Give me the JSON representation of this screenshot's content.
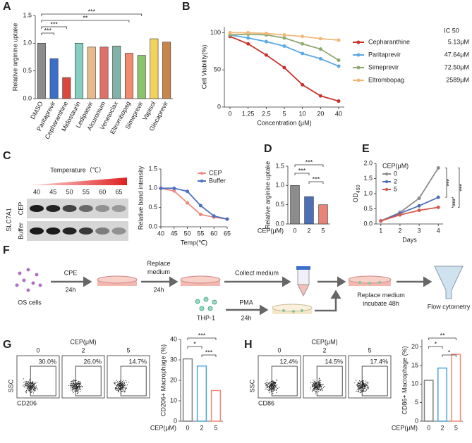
{
  "chart_data": [
    {
      "label": "A",
      "type": "bar",
      "ylabel": "Relative arginine uptake",
      "categories": [
        "DMSO",
        "Paritaprevir",
        "Cepharanthine",
        "Midostaurin",
        "Ledipasvir",
        "Alcuronium",
        "Venetoclax",
        "Eltrombopag",
        "Simeprevir",
        "Vapisol",
        "Glecaprevir"
      ],
      "values": [
        1.0,
        0.72,
        0.38,
        1.0,
        0.93,
        0.93,
        0.95,
        0.82,
        0.78,
        1.08,
        1.02
      ],
      "colors": [
        "#8c8c8c",
        "#3d6fc9",
        "#d9483b",
        "#86cfc0",
        "#e8b98a",
        "#e0706a",
        "#7fb3a8",
        "#f28a6f",
        "#8bc46f",
        "#f2d25c",
        "#c9864a"
      ],
      "ylim": [
        0,
        1.5
      ],
      "yticks": [
        {
          "value": 0,
          "label": "0.0"
        },
        {
          "value": 0.5,
          "label": "0.5"
        },
        {
          "value": 1,
          "label": "1.0"
        },
        {
          "value": 1.5,
          "label": "1.5"
        }
      ],
      "significance": [
        {
          "pair": [
            "DMSO",
            "Simeprevir"
          ],
          "label": "***"
        },
        {
          "pair": [
            "DMSO",
            "Eltrombopag"
          ],
          "label": "**"
        },
        {
          "pair": [
            "DMSO",
            "Cepharanthine"
          ],
          "label": "***"
        },
        {
          "pair": [
            "DMSO",
            "Paritaprevir"
          ],
          "label": "***"
        }
      ]
    },
    {
      "label": "B",
      "type": "line",
      "xlabel": "Concentration (μM)",
      "ylabel": "Cell Viability(%)",
      "categories": [
        "0",
        "1.25",
        "2.5",
        "5",
        "10",
        "20",
        "40"
      ],
      "ylim": [
        0,
        108
      ],
      "yticks": [
        0,
        50,
        100
      ],
      "legend_title": "IC 50",
      "series": [
        {
          "name": "Cepharanthine",
          "color": "#c9302c",
          "ic50": "5.13μM",
          "values": [
            95,
            85,
            70,
            53,
            30,
            15,
            8
          ]
        },
        {
          "name": "Paritaprevir",
          "color": "#5aa9e6",
          "ic50": "47.64μM",
          "values": [
            97,
            93,
            88,
            82,
            72,
            65,
            55
          ]
        },
        {
          "name": "Simeprevir",
          "color": "#8fa870",
          "ic50": "72.50μM",
          "values": [
            97,
            98,
            97,
            93,
            85,
            78,
            63
          ]
        },
        {
          "name": "Eltrombopag",
          "color": "#f2b777",
          "ic50": "2589μM",
          "values": [
            100,
            100,
            99,
            97,
            95,
            92,
            90
          ]
        }
      ]
    },
    {
      "type": "line",
      "xlabel": "Temp(℃)",
      "ylabel": "Relative band intensity",
      "x": [
        40,
        45,
        50,
        55,
        60,
        65
      ],
      "xlim": [
        40,
        65
      ],
      "xticks": [
        40,
        45,
        50,
        55,
        60,
        65
      ],
      "ylim": [
        0,
        1.5
      ],
      "yticks": [
        {
          "value": 0,
          "label": "0.0"
        },
        {
          "value": 0.5,
          "label": "0.5"
        },
        {
          "value": 1,
          "label": "1.0"
        },
        {
          "value": 1.5,
          "label": "1.5"
        }
      ],
      "series": [
        {
          "name": "CEP",
          "color": "#f08a80",
          "values": [
            1.0,
            0.93,
            0.62,
            0.32,
            0.25,
            0.2
          ]
        },
        {
          "name": "Buffer",
          "color": "#4a6fc4",
          "values": [
            1.0,
            1.0,
            0.92,
            0.55,
            0.28,
            0.2
          ]
        }
      ]
    },
    {
      "label": "D",
      "type": "bar",
      "ylabel": "Relative arginine uptake",
      "xlabel": "CEP(μM)",
      "categories": [
        "0",
        "2",
        "5"
      ],
      "values": [
        1.0,
        0.71,
        0.5
      ],
      "colors": [
        "#8c8c8c",
        "#4d6fb8",
        "#e8837a"
      ],
      "ylim": [
        0,
        1.5
      ],
      "yticks": [
        {
          "value": 0,
          "label": "0.0"
        },
        {
          "value": 0.5,
          "label": "0.5"
        },
        {
          "value": 1,
          "label": "1.0"
        },
        {
          "value": 1.5,
          "label": "1.5"
        }
      ],
      "significance": [
        {
          "pair": [
            "0",
            "5"
          ],
          "label": "***"
        },
        {
          "pair": [
            "0",
            "2"
          ],
          "label": "***"
        },
        {
          "pair": [
            "2",
            "5"
          ],
          "label": "***"
        }
      ]
    },
    {
      "label": "E",
      "type": "line",
      "xlabel": "Days",
      "ylabel": "OD",
      "ylabel_subscript": "450",
      "x": [
        1,
        2,
        3,
        4
      ],
      "xlim": [
        0.75,
        4.25
      ],
      "xticks": [
        1,
        2,
        3,
        4
      ],
      "ylim": [
        0,
        2
      ],
      "yticks": [
        {
          "value": 0,
          "label": "0.0"
        },
        {
          "value": 0.5,
          "label": "0.5"
        },
        {
          "value": 1,
          "label": "1.0"
        },
        {
          "value": 1.5,
          "label": "1.5"
        },
        {
          "value": 2,
          "label": "2.0"
        }
      ],
      "legend_title": "CEP(μM)",
      "series": [
        {
          "name": "0",
          "color": "#8c8c8c",
          "values": [
            0.1,
            0.38,
            0.85,
            1.85
          ]
        },
        {
          "name": "2",
          "color": "#4d6fb8",
          "values": [
            0.1,
            0.35,
            0.6,
            0.88
          ]
        },
        {
          "name": "5",
          "color": "#d9584b",
          "values": [
            0.1,
            0.3,
            0.45,
            0.55
          ]
        }
      ],
      "significance": [
        {
          "pair": [
            "0",
            "2"
          ],
          "label": "***"
        },
        {
          "pair": [
            "2",
            "5"
          ],
          "label": "***"
        },
        {
          "pair": [
            "0",
            "5"
          ],
          "label": "***"
        }
      ]
    },
    {
      "type": "bar",
      "hollow": true,
      "ylabel": "CD206+ Macrophage (%)",
      "xlabel": "CEP(μM)",
      "categories": [
        "0",
        "2",
        "5"
      ],
      "values": [
        30.5,
        27,
        15
      ],
      "colors": [
        "#7f7f7f",
        "#4aa3d8",
        "#f08a70"
      ],
      "ylim": [
        0,
        40
      ],
      "yticks": [
        0,
        10,
        20,
        30,
        40
      ],
      "significance": [
        {
          "pair": [
            "0",
            "5"
          ],
          "label": "***"
        },
        {
          "pair": [
            "0",
            "2"
          ],
          "label": "*"
        },
        {
          "pair": [
            "2",
            "5"
          ],
          "label": "***"
        }
      ]
    },
    {
      "type": "bar",
      "hollow": true,
      "ylabel": "CD86+ Macrophage (%)",
      "xlabel": "CEP(μM)",
      "categories": [
        "0",
        "2",
        "5"
      ],
      "values": [
        11,
        14.3,
        18
      ],
      "colors": [
        "#7f7f7f",
        "#4aa3d8",
        "#f08a70"
      ],
      "ylim": [
        0,
        22
      ],
      "yticks": [
        0,
        5,
        10,
        15,
        20
      ],
      "significance": [
        {
          "pair": [
            "0",
            "5"
          ],
          "label": "**"
        },
        {
          "pair": [
            "0",
            "2"
          ],
          "label": "*"
        },
        {
          "pair": [
            "2",
            "5"
          ],
          "label": "*"
        }
      ]
    }
  ],
  "blot": {
    "label": "C",
    "title": "Temperature（℃）",
    "temperatures": [
      "40",
      "45",
      "50",
      "55",
      "60",
      "65"
    ],
    "protein": "SLC7A1",
    "rows": [
      "CEP",
      "Buffer"
    ]
  },
  "diagram": {
    "label": "F",
    "os_cells": "OS cells",
    "cpe": "CPE",
    "cpe_time": "24h",
    "replace": [
      "Replace",
      "medium"
    ],
    "replace_time": "24h",
    "collect": "Collect medium",
    "thp1": "THP-1",
    "pma": "PMA",
    "pma_time": "24h",
    "replace_incubate": [
      "Replace medium",
      "incubate 48h"
    ],
    "flow": "Flow cytometry"
  },
  "flow": [
    {
      "label": "G",
      "header": "CEP(μM)",
      "doses": [
        "0",
        "2",
        "5"
      ],
      "percents": [
        "30.0%",
        "26.0%",
        "14.7%"
      ],
      "y_axis": "SSC",
      "x_axis": "CD206"
    },
    {
      "label": "H",
      "header": "CEP(μM)",
      "doses": [
        "0",
        "2",
        "5"
      ],
      "percents": [
        "12.4%",
        "14.5%",
        "17.4%"
      ],
      "y_axis": "SSC",
      "x_axis": "CD86"
    }
  ]
}
